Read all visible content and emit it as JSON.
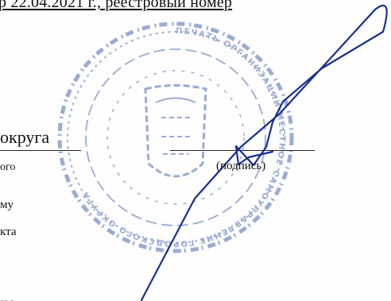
{
  "document": {
    "top_line": "р 22.04.2021 г., реестровый номер",
    "big_text": "округа",
    "small_text": "ого",
    "signature_caption": "(подпись)",
    "left_line_1": "му",
    "left_line_2": "кта",
    "bottom_fragment": "-- -"
  },
  "seal": {
    "color": "#4a68b0",
    "edge_text": "ПЕЧАТЬ ОРГАНИЗАЦИИ МЕСТНОЕ САМОУПРАВЛЕНИЕ ГОРОДСКОГО ОКРУГА"
  },
  "signature": {
    "color": "#17308f"
  }
}
